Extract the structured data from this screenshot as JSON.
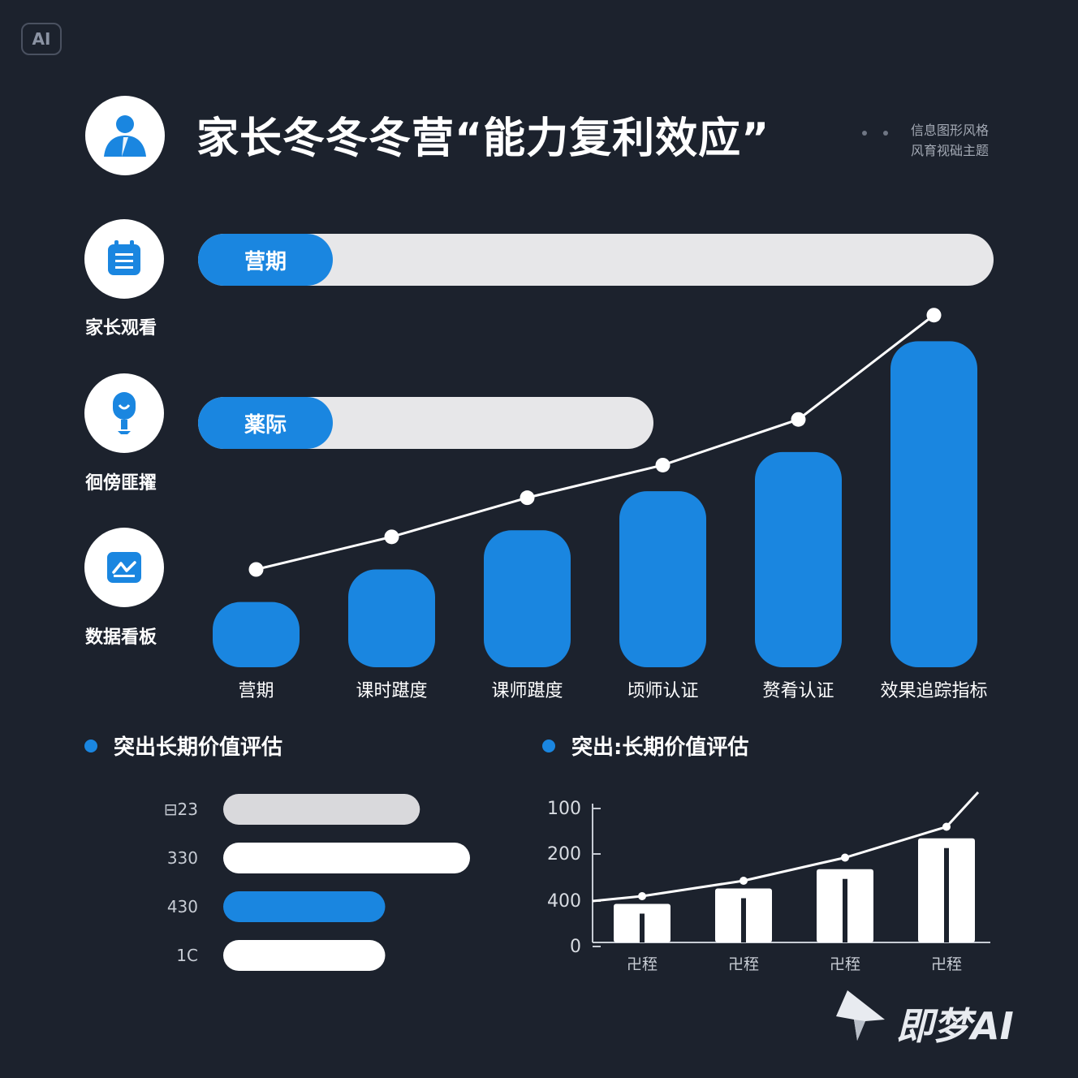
{
  "badge": "AI",
  "header": {
    "title": "家长冬冬冬营“能力复利效应”",
    "note_line1": "信息图形风格",
    "note_line2": "风育视础主题"
  },
  "side": {
    "items": [
      {
        "icon": "person-icon",
        "label": ""
      },
      {
        "icon": "calendar-icon",
        "label": "家长观看"
      },
      {
        "icon": "microphone-icon",
        "label": "徊傍匪擢"
      },
      {
        "icon": "chart-board-icon",
        "label": "数据看板"
      }
    ]
  },
  "progress": [
    {
      "label": "营期",
      "fraction": 1.0
    },
    {
      "label": "薬际",
      "fraction": 0.57
    }
  ],
  "sections": {
    "left_heading": "突出长期价值评估",
    "right_heading": "突出:长期价值评估"
  },
  "watermark": "即梦AI",
  "colors": {
    "background": "#1c222d",
    "accent": "#1a86e0",
    "light": "#e7e7e9"
  },
  "chart_data": [
    {
      "type": "bar",
      "categories": [
        "营期",
        "课时踸度",
        "课师踸度",
        "顷师认证",
        "赘肴认证",
        "效果追踪指标"
      ],
      "series": [
        {
          "values": [
            1.0,
            1.5,
            2.1,
            2.7,
            3.3,
            5.0
          ]
        },
        {
          "type": "line",
          "values": [
            1.5,
            2.0,
            2.6,
            3.1,
            3.8,
            5.4
          ]
        }
      ],
      "ylim": [
        0,
        6
      ]
    },
    {
      "type": "bar",
      "orientation": "horizontal",
      "categories": [
        "⊟23",
        "330",
        "430",
        "1C"
      ],
      "values": [
        0.51,
        0.64,
        0.42,
        0.42
      ],
      "colors": [
        "#d9d9dc",
        "#ffffff",
        "#1a86e0",
        "#ffffff"
      ],
      "xlim": [
        0,
        1
      ]
    },
    {
      "type": "bar",
      "categories": [
        "卍秷",
        "卍秷",
        "卍秷",
        "卍秷"
      ],
      "yticks": [
        "100",
        "200",
        "400",
        "0"
      ],
      "series": [
        {
          "values": [
            1.0,
            1.4,
            1.9,
            2.7
          ]
        },
        {
          "type": "line",
          "values": [
            1.2,
            1.6,
            2.2,
            3.0
          ]
        }
      ],
      "ylim": [
        0,
        3.6
      ]
    }
  ]
}
